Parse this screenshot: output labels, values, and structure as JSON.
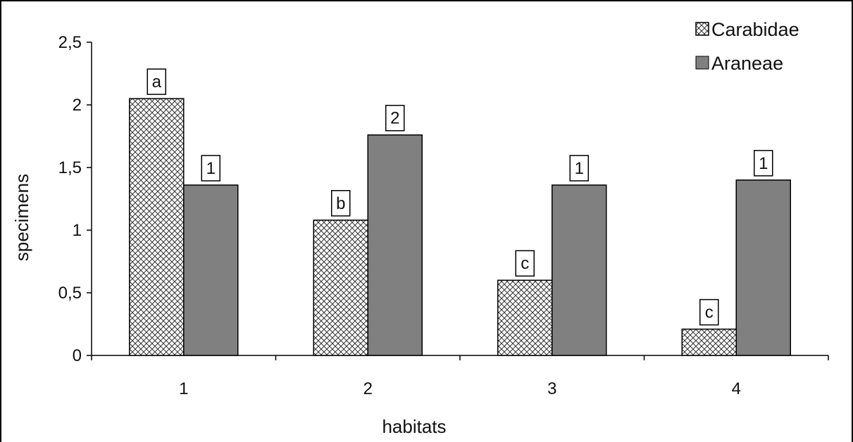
{
  "chart_data": {
    "type": "bar",
    "categories": [
      "1",
      "2",
      "3",
      "4"
    ],
    "series": [
      {
        "name": "Carabidae",
        "values": [
          2.05,
          1.08,
          0.6,
          0.21
        ],
        "labels": [
          "a",
          "b",
          "c",
          "c"
        ],
        "fill": "crosshatch",
        "color": "#ffffff"
      },
      {
        "name": "Araneae",
        "values": [
          1.36,
          1.76,
          1.36,
          1.4
        ],
        "labels": [
          "1",
          "2",
          "1",
          "1"
        ],
        "fill": "solid",
        "color": "#808080"
      }
    ],
    "xlabel": "habitats",
    "ylabel": "specimens",
    "ylim": [
      0,
      2.5
    ],
    "yticks": [
      "0",
      "0,5",
      "1",
      "1,5",
      "2",
      "2,5"
    ],
    "ytick_values": [
      0,
      0.5,
      1,
      1.5,
      2,
      2.5
    ],
    "grid": false,
    "legend_position": "top-right"
  }
}
